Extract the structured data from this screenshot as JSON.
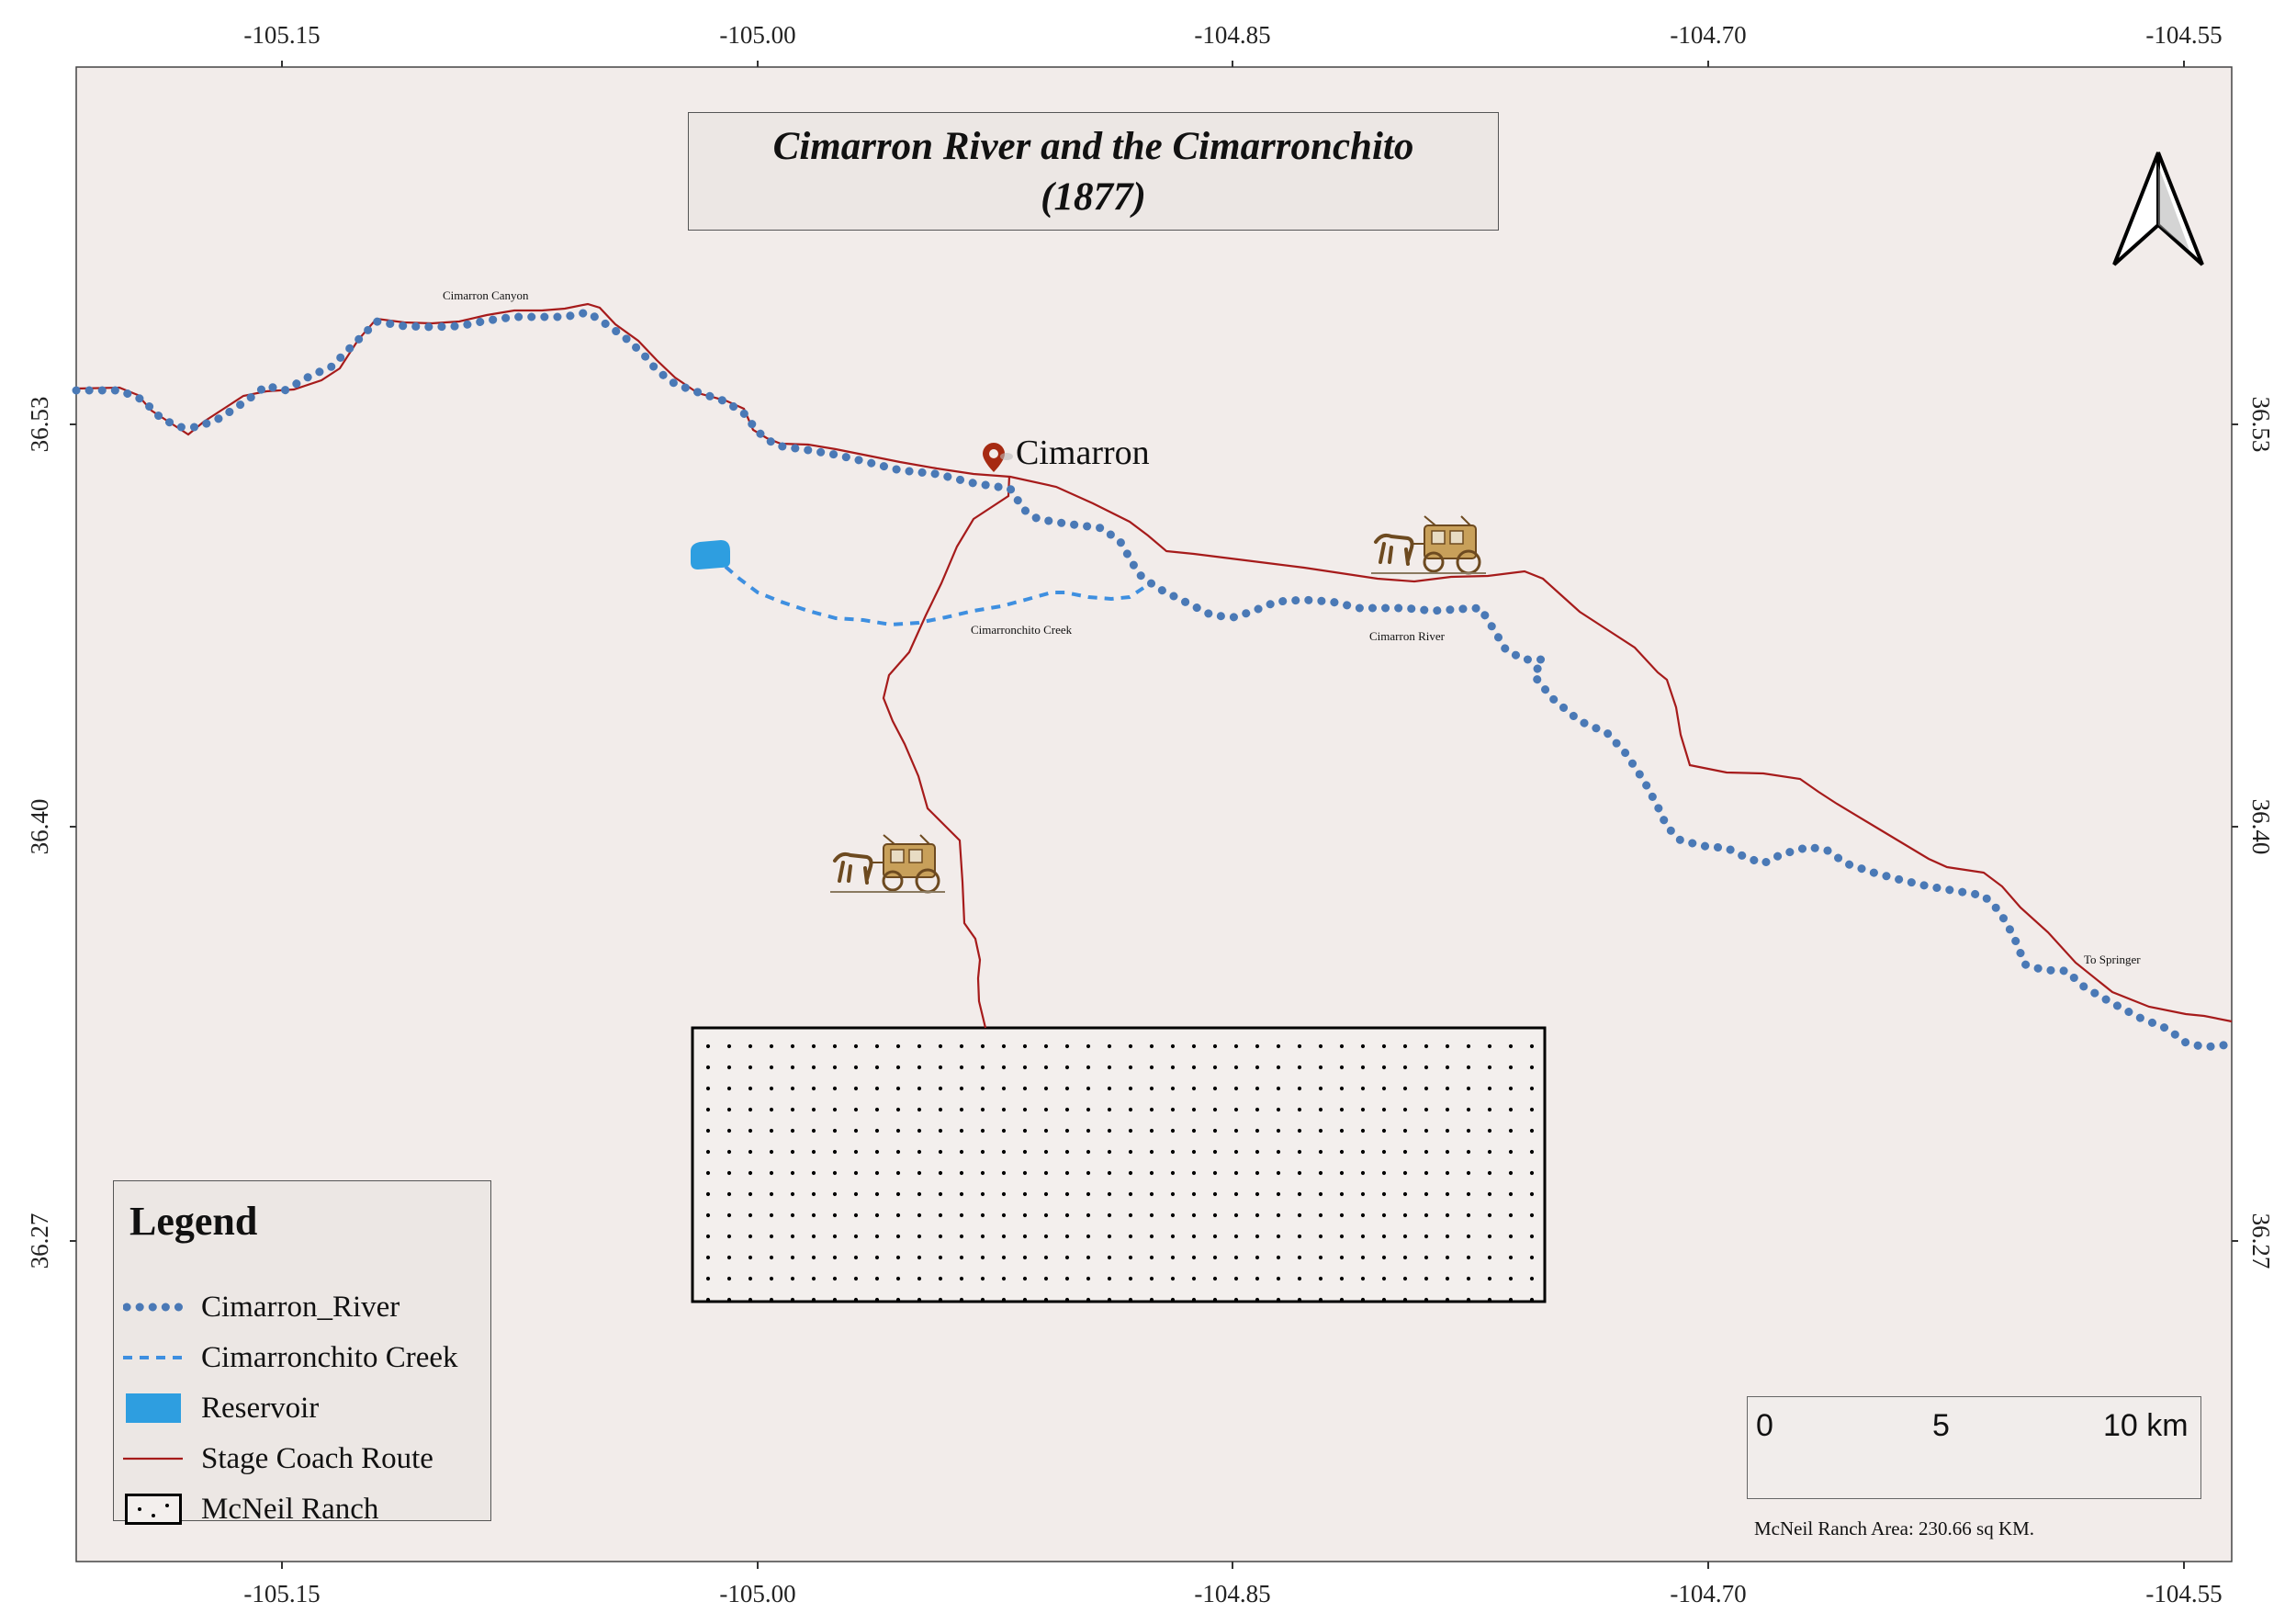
{
  "title": {
    "line1": "Cimarron River and the Cimarronchito",
    "line2": "(1877)"
  },
  "axes": {
    "top_ticks": [
      "-105.15",
      "-105.00",
      "-104.85",
      "-104.70",
      "-104.55"
    ],
    "bottom_ticks": [
      "-105.15",
      "-105.00",
      "-104.85",
      "-104.70",
      "-104.55"
    ],
    "left_ticks": [
      "36.53",
      "36.40",
      "36.27"
    ],
    "right_ticks": [
      "36.53",
      "36.40",
      "36.27"
    ]
  },
  "places": {
    "town": "Cimarron",
    "canyon": "Cimarron Canyon",
    "creek": "Cimarronchito Creek",
    "river": "Cimarron River",
    "springer": "To Springer"
  },
  "legend": {
    "title": "Legend",
    "items": [
      {
        "label": "Cimarron_River",
        "symbol": "thick-dotted-line",
        "color": "#4a79b6"
      },
      {
        "label": "Cimarronchito Creek",
        "symbol": "dashed-line",
        "color": "#3e8fe0"
      },
      {
        "label": "Reservoir",
        "symbol": "filled-rect",
        "color": "#2e9ee0"
      },
      {
        "label": "Stage Coach Route",
        "symbol": "thin-line",
        "color": "#a61b1b"
      },
      {
        "label": "McNeil Ranch",
        "symbol": "dotted-rect",
        "color": "#000000"
      }
    ]
  },
  "scale_bar": {
    "labels": [
      "0",
      "5",
      "10 km"
    ]
  },
  "area_note": "McNeil Ranch Area: 230.66 sq KM.",
  "colors": {
    "map_background": "#f2ecea",
    "river": "#4a79b6",
    "creek": "#3e8fe0",
    "reservoir": "#2e9ee0",
    "route": "#a61b1b",
    "marker": "#a62a12"
  },
  "icons": {
    "north_arrow": "north-arrow-icon",
    "town_marker": "map-pin-icon",
    "coach": "stagecoach-icon"
  }
}
